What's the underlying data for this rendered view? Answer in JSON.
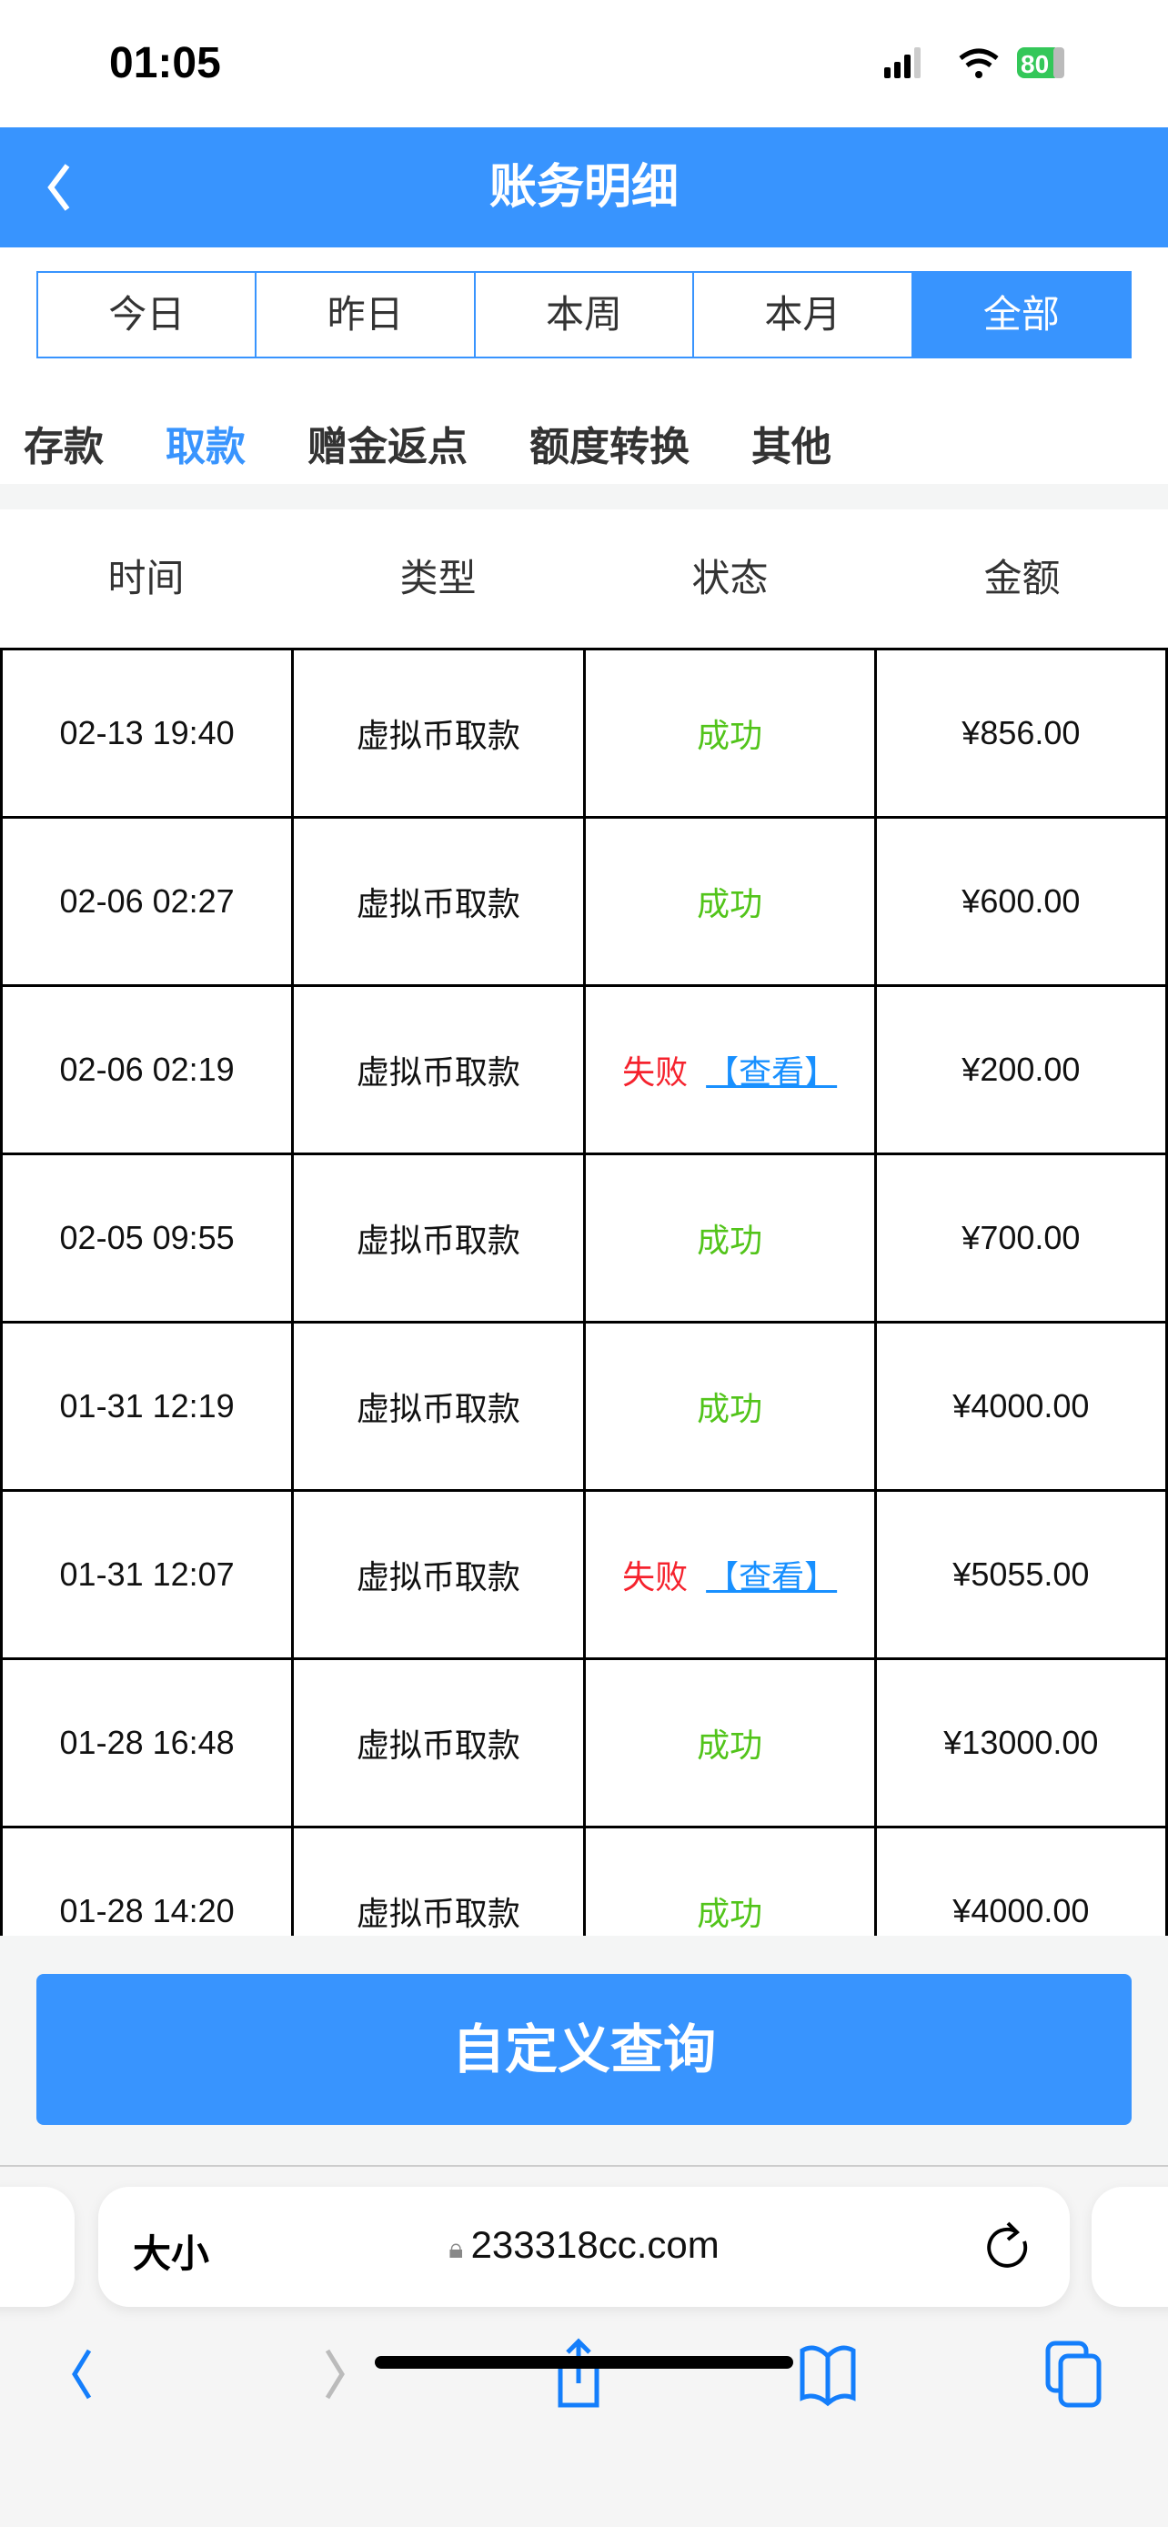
{
  "status_bar": {
    "time": "01:05",
    "battery": "80"
  },
  "header": {
    "title": "账务明细"
  },
  "filters": [
    {
      "label": "今日"
    },
    {
      "label": "昨日"
    },
    {
      "label": "本周"
    },
    {
      "label": "本月"
    },
    {
      "label": "全部",
      "active": true
    }
  ],
  "categories": [
    {
      "label": "存款"
    },
    {
      "label": "取款",
      "active": true
    },
    {
      "label": "赠金返点"
    },
    {
      "label": "额度转换"
    },
    {
      "label": "其他"
    }
  ],
  "table": {
    "columns": [
      "时间",
      "类型",
      "状态",
      "金额"
    ],
    "rows": [
      {
        "time": "02-13 19:40",
        "type": "虚拟币取款",
        "status": "成功",
        "link": "",
        "amount": "¥856.00"
      },
      {
        "time": "02-06 02:27",
        "type": "虚拟币取款",
        "status": "成功",
        "link": "",
        "amount": "¥600.00"
      },
      {
        "time": "02-06 02:19",
        "type": "虚拟币取款",
        "status": "失败",
        "link": "【查看】",
        "amount": "¥200.00"
      },
      {
        "time": "02-05 09:55",
        "type": "虚拟币取款",
        "status": "成功",
        "link": "",
        "amount": "¥700.00"
      },
      {
        "time": "01-31 12:19",
        "type": "虚拟币取款",
        "status": "成功",
        "link": "",
        "amount": "¥4000.00"
      },
      {
        "time": "01-31 12:07",
        "type": "虚拟币取款",
        "status": "失败",
        "link": "【查看】",
        "amount": "¥5055.00"
      },
      {
        "time": "01-28 16:48",
        "type": "虚拟币取款",
        "status": "成功",
        "link": "",
        "amount": "¥13000.00"
      },
      {
        "time": "01-28 14:20",
        "type": "虚拟币取款",
        "status": "成功",
        "link": "",
        "amount": "¥4000.00"
      }
    ]
  },
  "query_button": "自定义查询",
  "browser": {
    "text_size": "大小",
    "url": "233318cc.com"
  },
  "colors": {
    "accent": "#3894fe",
    "success": "#52c41a",
    "fail": "#f5222d",
    "link": "#1890ff"
  }
}
